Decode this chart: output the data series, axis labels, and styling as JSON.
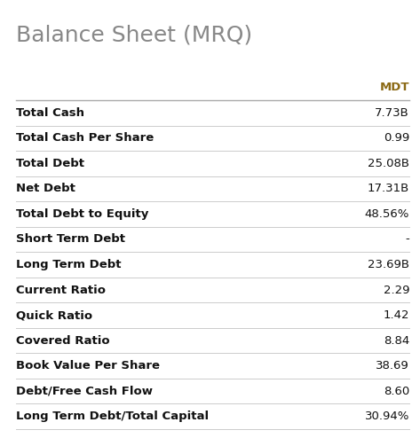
{
  "title": "Balance Sheet (MRQ)",
  "title_color": "#888888",
  "title_fontsize": 18,
  "header_label": "MDT",
  "header_color": "#8B6914",
  "header_fontsize": 9.5,
  "rows": [
    {
      "label": "Total Cash",
      "value": "7.73B"
    },
    {
      "label": "Total Cash Per Share",
      "value": "0.99"
    },
    {
      "label": "Total Debt",
      "value": "25.08B"
    },
    {
      "label": "Net Debt",
      "value": "17.31B"
    },
    {
      "label": "Total Debt to Equity",
      "value": "48.56%"
    },
    {
      "label": "Short Term Debt",
      "value": "-"
    },
    {
      "label": "Long Term Debt",
      "value": "23.69B"
    },
    {
      "label": "Current Ratio",
      "value": "2.29"
    },
    {
      "label": "Quick Ratio",
      "value": "1.42"
    },
    {
      "label": "Covered Ratio",
      "value": "8.84"
    },
    {
      "label": "Book Value Per Share",
      "value": "38.69"
    },
    {
      "label": "Debt/Free Cash Flow",
      "value": "8.60"
    },
    {
      "label": "Long Term Debt/Total Capital",
      "value": "30.94%"
    }
  ],
  "label_fontsize": 9.5,
  "value_fontsize": 9.5,
  "label_color": "#111111",
  "value_color": "#111111",
  "bg_color": "#ffffff",
  "line_color": "#cccccc",
  "header_line_color": "#aaaaaa",
  "figsize": [
    4.73,
    4.94
  ],
  "dpi": 100
}
